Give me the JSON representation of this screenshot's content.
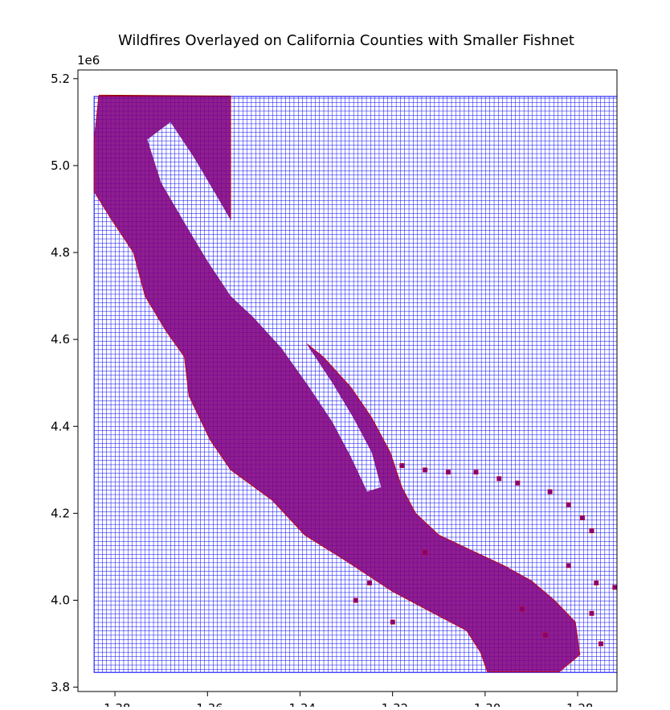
{
  "chart_data": {
    "type": "map",
    "title": "Wildfires Overlayed on California Counties with Smaller Fishnet",
    "xlabel": "",
    "ylabel": "",
    "y_offset_label": "1e6",
    "xlim": [
      -13.88,
      -12.715
    ],
    "ylim": [
      3.79,
      5.22
    ],
    "x_tick_values": [
      -13.8,
      -13.6,
      -13.4,
      -13.2,
      -13.0,
      -12.8
    ],
    "x_tick_labels": [
      "-1.38",
      "-1.36",
      "-1.34",
      "-1.32",
      "-1.30",
      "-1.28"
    ],
    "y_tick_values": [
      3.8,
      4.0,
      4.2,
      4.4,
      4.6,
      4.8,
      5.0,
      5.2
    ],
    "y_tick_labels": [
      "3.8",
      "4.0",
      "4.2",
      "4.4",
      "4.6",
      "4.8",
      "5.0",
      "5.2"
    ],
    "fishnet_extent": {
      "x": [
        -13.845,
        -12.7
      ],
      "y": [
        3.834,
        5.159
      ]
    },
    "fishnet_cell_size": 0.01,
    "fishnet_color": "#0000ff",
    "wildfire_color": "#800080",
    "wildfire_edge_color": "#cc0000",
    "county_boundary_color": "#8b0000",
    "grid": false,
    "legend": "none"
  }
}
